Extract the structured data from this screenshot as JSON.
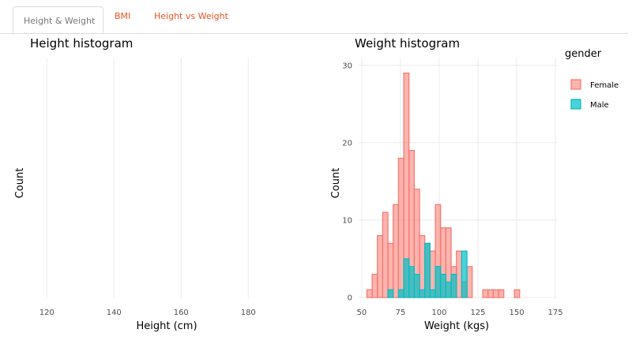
{
  "tabs": [
    {
      "label": "Height & Weight",
      "active": true
    },
    {
      "label": "BMI",
      "active": false
    },
    {
      "label": "Height vs Weight",
      "active": false
    }
  ],
  "colors": {
    "accent": "#e95420",
    "female": "#f8766d",
    "male": "#00bfc4"
  },
  "chart_data": [
    {
      "type": "bar",
      "title": "Height histogram",
      "xlabel": "Height (cm)",
      "ylabel": "Count",
      "xlim": [
        115,
        195
      ],
      "xticks": [
        120,
        140,
        160,
        180
      ],
      "series": []
    },
    {
      "type": "bar",
      "title": "Weight histogram",
      "xlabel": "Weight (kgs)",
      "ylabel": "Count",
      "xlim": [
        48,
        176
      ],
      "ylim": [
        0,
        31
      ],
      "xticks": [
        50,
        75,
        100,
        125,
        150,
        175
      ],
      "yticks": [
        0,
        10,
        20,
        30
      ],
      "bin_width": 3.4,
      "legend_title": "gender",
      "series": [
        {
          "name": "Female",
          "x": [
            55,
            58.4,
            61.8,
            65.2,
            68.6,
            72,
            75.4,
            78.8,
            82.2,
            85.6,
            89,
            92.4,
            95.8,
            99.2,
            102.6,
            106,
            109.4,
            112.8,
            116.2,
            119.6,
            123,
            126.4,
            129.8,
            133.2,
            136.6,
            140,
            143.4,
            146.8,
            150.2,
            153.6,
            157,
            160.4,
            163.8,
            167.2
          ],
          "values": [
            1,
            3,
            8,
            11,
            7,
            12,
            18,
            29,
            19,
            14,
            8,
            7,
            6,
            12,
            9,
            9,
            4,
            6,
            2,
            4,
            0,
            0,
            1,
            1,
            1,
            1,
            0,
            0,
            1,
            0,
            0,
            0,
            0,
            0
          ]
        },
        {
          "name": "Male",
          "x": [
            55,
            58.4,
            61.8,
            65.2,
            68.6,
            72,
            75.4,
            78.8,
            82.2,
            85.6,
            89,
            92.4,
            95.8,
            99.2,
            102.6,
            106,
            109.4,
            112.8,
            116.2,
            119.6,
            123,
            126.4,
            129.8,
            133.2,
            136.6,
            140,
            143.4,
            146.8,
            150.2,
            153.6,
            157,
            160.4,
            163.8,
            167.2
          ],
          "values": [
            0,
            0,
            0,
            0,
            1,
            0,
            1,
            5,
            4,
            3,
            1,
            7,
            1,
            4,
            3,
            2,
            3,
            0,
            6,
            0,
            0,
            0,
            0,
            0,
            0,
            0,
            0,
            0,
            0,
            0,
            0,
            0,
            0,
            0
          ]
        }
      ]
    }
  ]
}
